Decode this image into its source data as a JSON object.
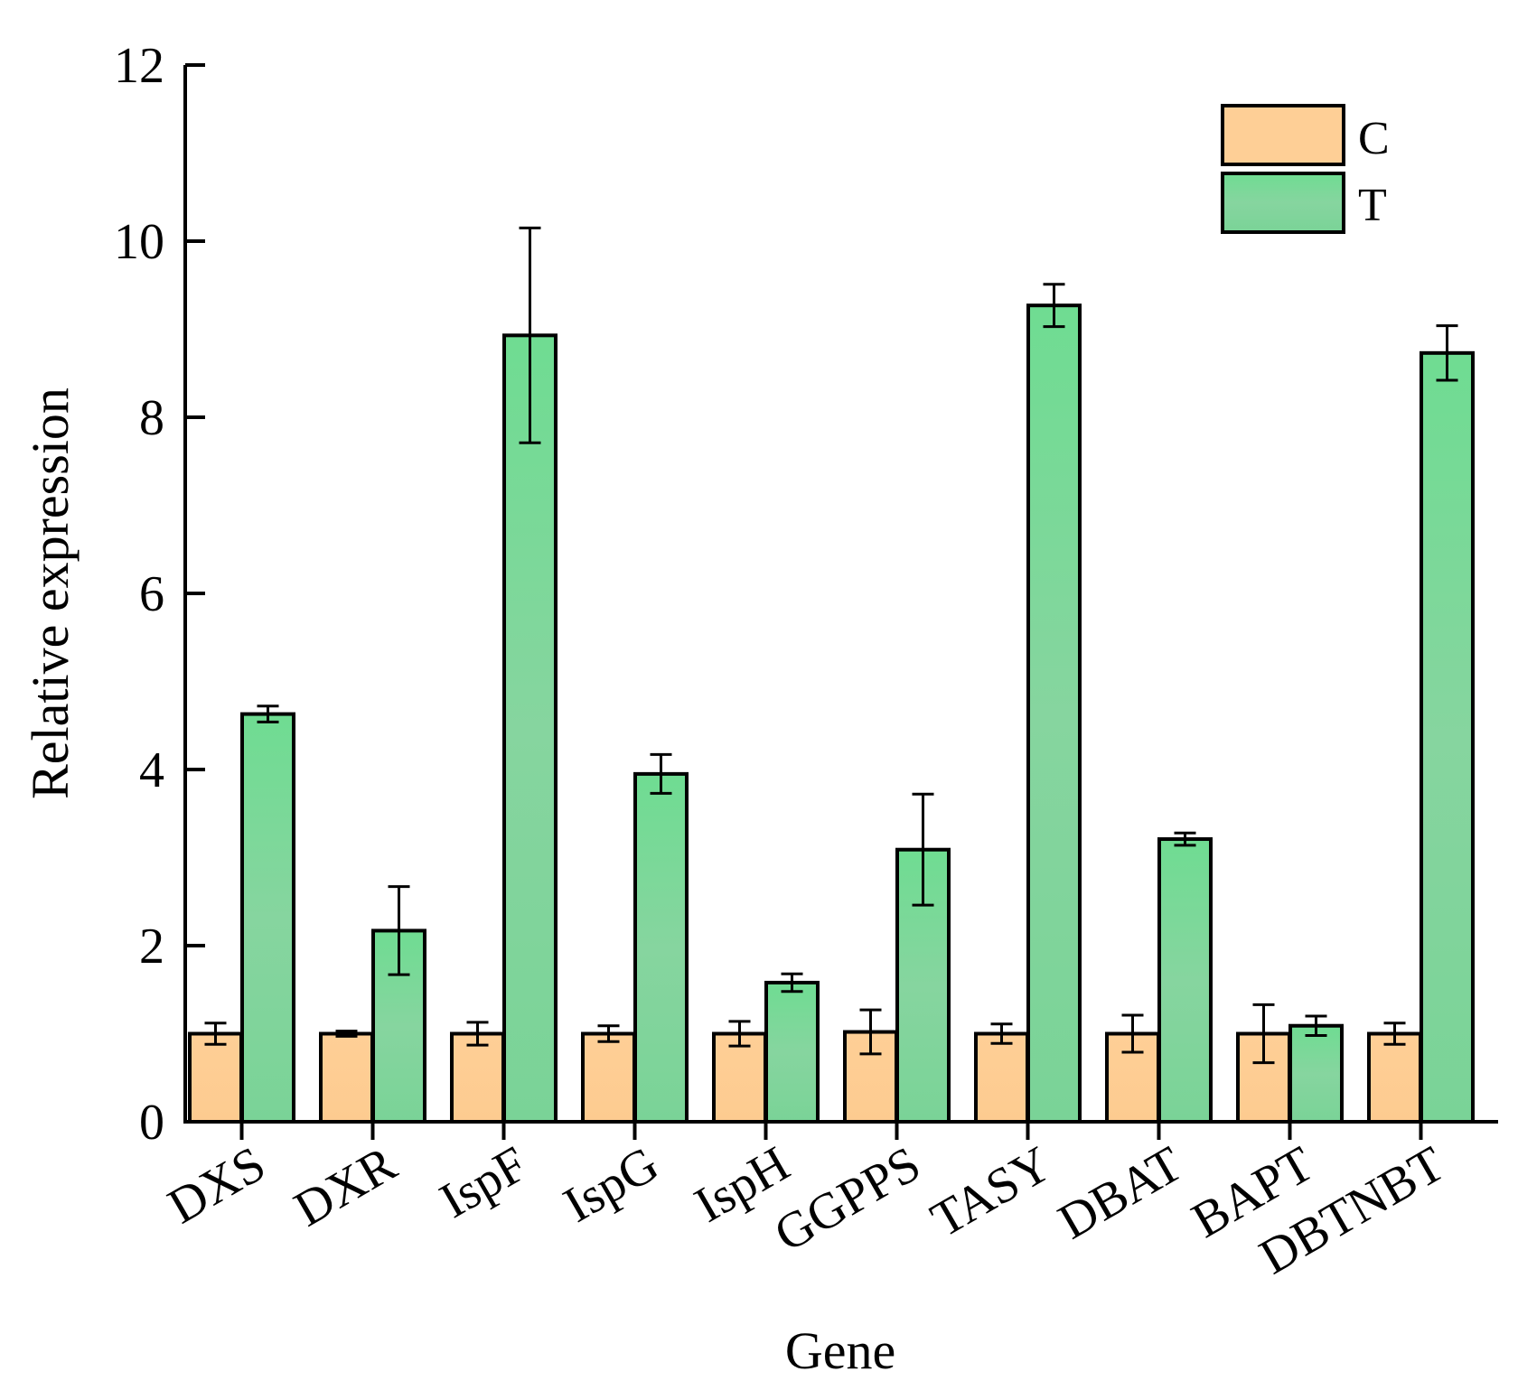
{
  "chart_data": {
    "type": "bar",
    "title": "",
    "xlabel": "Gene",
    "ylabel": "Relative expression",
    "ylim": [
      0,
      12
    ],
    "yticks": [
      0,
      2,
      4,
      6,
      8,
      10,
      12
    ],
    "categories": [
      "DXS",
      "DXR",
      "IspF",
      "IspG",
      "IspH",
      "GGPPS",
      "TASY",
      "DBAT",
      "BAPT",
      "DBTNBT"
    ],
    "series": [
      {
        "name": "C",
        "color": "#FECF96",
        "values": [
          1.0,
          1.0,
          1.0,
          1.0,
          1.0,
          1.02,
          1.0,
          1.0,
          1.0,
          1.0
        ],
        "errors": [
          0.12,
          0.03,
          0.13,
          0.09,
          0.14,
          0.25,
          0.11,
          0.21,
          0.33,
          0.12
        ]
      },
      {
        "name": "T",
        "color": "#7FD99A",
        "values": [
          4.63,
          2.17,
          8.93,
          3.95,
          1.58,
          3.09,
          9.27,
          3.21,
          1.09,
          8.73
        ],
        "errors": [
          0.09,
          0.5,
          1.22,
          0.22,
          0.1,
          0.63,
          0.24,
          0.07,
          0.11,
          0.31
        ]
      }
    ],
    "legend_position": "top-right"
  }
}
